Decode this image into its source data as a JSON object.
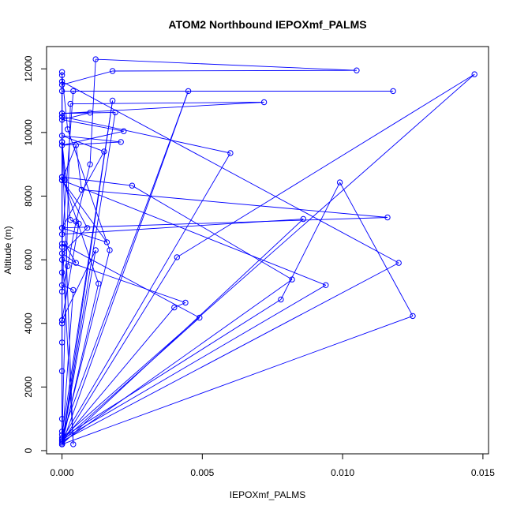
{
  "chart_data": {
    "type": "line",
    "title": "ATOM2 Northbound IEPOXmf_PALMS",
    "xlabel": "IEPOXmf_PALMS",
    "ylabel": "Altitude (m)",
    "xlim": [
      -0.00055,
      0.0152
    ],
    "ylim": [
      -100,
      12700
    ],
    "x_ticks": [
      0.0,
      0.005,
      0.01,
      0.015
    ],
    "x_tick_labels": [
      "0.000",
      "0.005",
      "0.010",
      "0.015"
    ],
    "y_ticks": [
      0,
      2000,
      4000,
      6000,
      8000,
      10000,
      12000
    ],
    "y_tick_labels": [
      "0",
      "2000",
      "4000",
      "6000",
      "8000",
      "10000",
      "12000"
    ],
    "grid": false,
    "marker": "open-circle",
    "series": [
      {
        "color": "#0000ff",
        "points": [
          [
            0.0,
            200
          ],
          [
            0.0,
            350
          ],
          [
            0.0,
            1000
          ],
          [
            0.0,
            2500
          ],
          [
            0.0,
            4100
          ],
          [
            0.0,
            5000
          ],
          [
            0.0002,
            5800
          ],
          [
            0.0005,
            7200
          ],
          [
            0.001,
            9000
          ],
          [
            0.0012,
            12300
          ],
          [
            0.0105,
            11950
          ],
          [
            0.0018,
            11930
          ],
          [
            0.0,
            11500
          ],
          [
            0.0,
            8600
          ],
          [
            0.0,
            5600
          ],
          [
            0.0,
            3400
          ],
          [
            0.0,
            600
          ],
          [
            0.0,
            300
          ],
          [
            0.004,
            4500
          ],
          [
            0.0044,
            4650
          ],
          [
            0.0,
            6000
          ],
          [
            0.0,
            11800
          ],
          [
            0.0002,
            10100
          ],
          [
            0.0017,
            6300
          ],
          [
            0.0,
            300
          ],
          [
            0.0049,
            4180
          ],
          [
            0.0,
            6500
          ],
          [
            0.0004,
            11300
          ],
          [
            0.0118,
            11300
          ],
          [
            0.0,
            11300
          ],
          [
            0.0,
            10500
          ],
          [
            0.006,
            9350
          ],
          [
            0.0,
            350
          ],
          [
            0.0094,
            5200
          ],
          [
            0.0,
            8500
          ],
          [
            0.0005,
            9600
          ],
          [
            0.0007,
            8200
          ],
          [
            0.0116,
            7330
          ],
          [
            0.0,
            7000
          ],
          [
            0.0,
            4000
          ],
          [
            0.0,
            200
          ],
          [
            0.0086,
            7280
          ],
          [
            0.0,
            6800
          ],
          [
            0.0,
            10600
          ],
          [
            0.0072,
            10950
          ],
          [
            0.0003,
            10900
          ],
          [
            0.0,
            300
          ],
          [
            0.012,
            5900
          ],
          [
            0.0,
            11600
          ],
          [
            0.0,
            200
          ],
          [
            0.0125,
            4230
          ],
          [
            0.0099,
            8430
          ],
          [
            0.0078,
            4750
          ],
          [
            0.0,
            400
          ],
          [
            0.0147,
            11830
          ],
          [
            0.0041,
            6080
          ],
          [
            0.0,
            250
          ],
          [
            0.0082,
            5380
          ],
          [
            0.0025,
            8330
          ],
          [
            0.0,
            8600
          ],
          [
            0.0013,
            5250
          ],
          [
            0.0,
            200
          ],
          [
            0.0019,
            10630
          ],
          [
            0.0,
            10600
          ],
          [
            0.001,
            10620
          ],
          [
            0.0,
            10400
          ],
          [
            0.0022,
            10040
          ],
          [
            0.0,
            9600
          ],
          [
            0.0021,
            9700
          ],
          [
            0.0,
            9900
          ],
          [
            0.0015,
            9400
          ],
          [
            0.0,
            7000
          ],
          [
            0.0016,
            6550
          ],
          [
            0.0,
            8500
          ],
          [
            0.0009,
            7000
          ],
          [
            0.0,
            6200
          ],
          [
            0.0005,
            5900
          ],
          [
            0.0001,
            6500
          ],
          [
            0.0,
            5200
          ],
          [
            0.0004,
            5050
          ],
          [
            0.0,
            200
          ],
          [
            0.0018,
            11000
          ],
          [
            0.0,
            500
          ],
          [
            0.0045,
            11300
          ],
          [
            0.0,
            200
          ],
          [
            0.0012,
            6300
          ],
          [
            0.0,
            4100
          ],
          [
            0.0006,
            7130
          ],
          [
            0.0003,
            7250
          ],
          [
            0.0,
            9700
          ],
          [
            0.0004,
            200
          ],
          [
            0.0,
            6400
          ],
          [
            0.0,
            8500
          ],
          [
            0.0001,
            8500
          ],
          [
            0.0,
            9700
          ],
          [
            0.0,
            10500
          ],
          [
            0.0,
            11900
          ]
        ]
      }
    ]
  }
}
